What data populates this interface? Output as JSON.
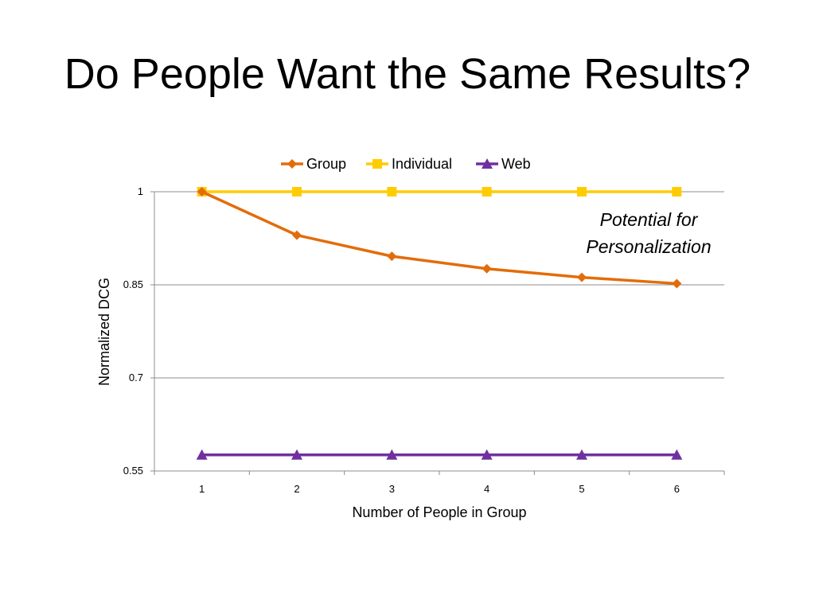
{
  "slide": {
    "title": "Do People Want the Same Results?"
  },
  "chart_data": {
    "type": "line",
    "title": "",
    "xlabel": "Number of People in Group",
    "ylabel": "Normalized DCG",
    "categories": [
      "1",
      "2",
      "3",
      "4",
      "5",
      "6"
    ],
    "ylim": [
      0.55,
      1
    ],
    "yticks": [
      "0.55",
      "0.7",
      "0.85",
      "1"
    ],
    "grid": true,
    "legend_position": "top",
    "series": [
      {
        "name": "Group",
        "color": "#E36C0A",
        "marker": "diamond",
        "values": [
          1.0,
          0.93,
          0.896,
          0.876,
          0.862,
          0.852
        ]
      },
      {
        "name": "Individual",
        "color": "#FFCC00",
        "marker": "square",
        "values": [
          1.0,
          1.0,
          1.0,
          1.0,
          1.0,
          1.0
        ]
      },
      {
        "name": "Web",
        "color": "#7030A0",
        "marker": "triangle",
        "values": [
          0.576,
          0.576,
          0.576,
          0.576,
          0.576,
          0.576
        ]
      }
    ],
    "annotation": {
      "line1": "Potential for",
      "line2": "Personalization"
    }
  }
}
